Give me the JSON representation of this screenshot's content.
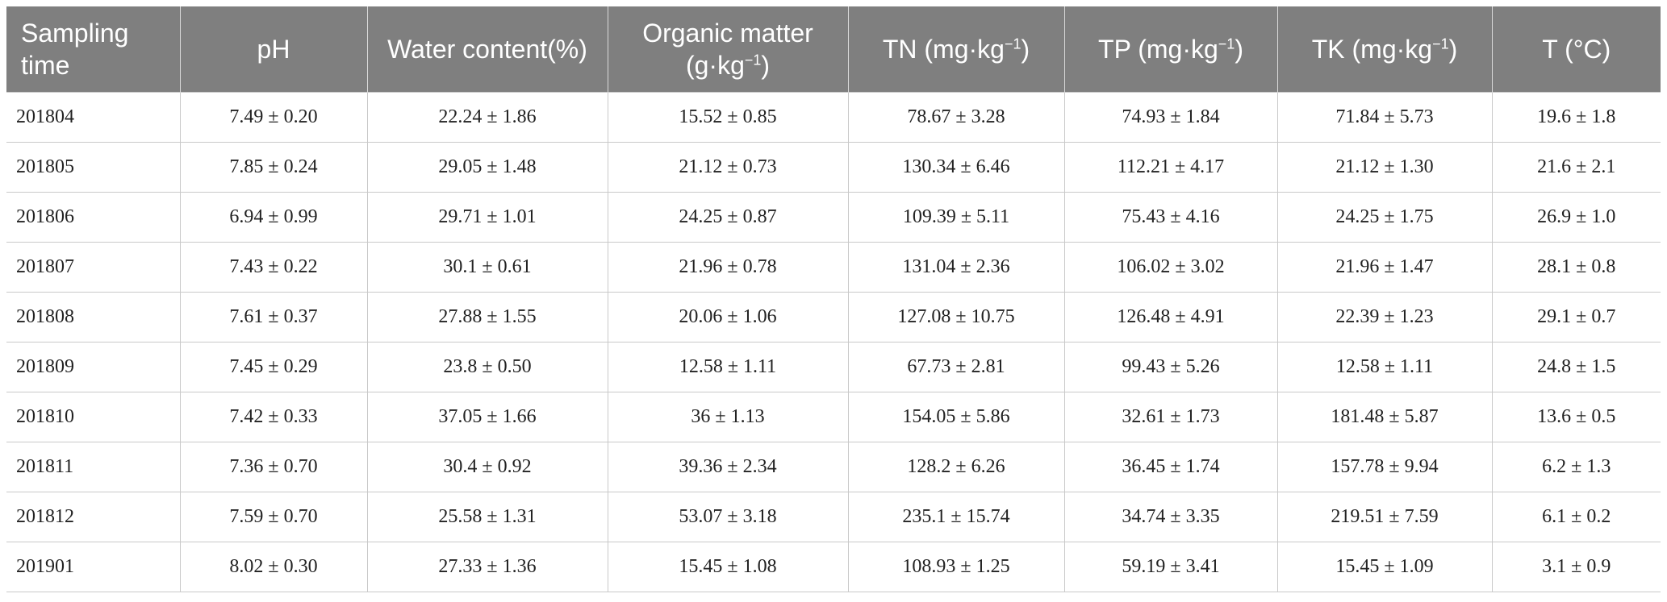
{
  "table": {
    "headers": [
      {
        "text": "Sampling time",
        "sup": "",
        "suffix": ""
      },
      {
        "text": "pH",
        "sup": "",
        "suffix": ""
      },
      {
        "text": "Water content(%)",
        "sup": "",
        "suffix": ""
      },
      {
        "text": "Organic matter (g·kg",
        "sup": "−1",
        "suffix": ")"
      },
      {
        "text": "TN (mg·kg",
        "sup": "−1",
        "suffix": ")"
      },
      {
        "text": "TP (mg·kg",
        "sup": "−1",
        "suffix": ")"
      },
      {
        "text": "TK (mg·kg",
        "sup": "−1",
        "suffix": ")"
      },
      {
        "text": "T (°C)",
        "sup": "",
        "suffix": ""
      }
    ],
    "rows": [
      [
        "201804",
        "7.49 ± 0.20",
        "22.24 ± 1.86",
        "15.52 ± 0.85",
        "78.67 ± 3.28",
        "74.93 ± 1.84",
        "71.84 ± 5.73",
        "19.6 ± 1.8"
      ],
      [
        "201805",
        "7.85 ± 0.24",
        "29.05 ± 1.48",
        "21.12 ± 0.73",
        "130.34 ± 6.46",
        "112.21 ± 4.17",
        "21.12 ± 1.30",
        "21.6 ± 2.1"
      ],
      [
        "201806",
        "6.94 ± 0.99",
        "29.71 ± 1.01",
        "24.25 ± 0.87",
        "109.39 ± 5.11",
        "75.43 ± 4.16",
        "24.25 ± 1.75",
        "26.9 ± 1.0"
      ],
      [
        "201807",
        "7.43 ± 0.22",
        "30.1 ± 0.61",
        "21.96 ± 0.78",
        "131.04 ± 2.36",
        "106.02 ± 3.02",
        "21.96 ± 1.47",
        "28.1 ± 0.8"
      ],
      [
        "201808",
        "7.61 ± 0.37",
        "27.88 ± 1.55",
        "20.06 ± 1.06",
        "127.08 ± 10.75",
        "126.48 ± 4.91",
        "22.39 ± 1.23",
        "29.1 ± 0.7"
      ],
      [
        "201809",
        "7.45 ± 0.29",
        "23.8 ± 0.50",
        "12.58 ± 1.11",
        "67.73 ± 2.81",
        "99.43 ± 5.26",
        "12.58 ± 1.11",
        "24.8 ± 1.5"
      ],
      [
        "201810",
        "7.42 ± 0.33",
        "37.05 ± 1.66",
        "36 ± 1.13",
        "154.05 ± 5.86",
        "32.61 ± 1.73",
        "181.48 ± 5.87",
        "13.6 ± 0.5"
      ],
      [
        "201811",
        "7.36 ± 0.70",
        "30.4 ± 0.92",
        "39.36 ± 2.34",
        "128.2 ± 6.26",
        "36.45 ± 1.74",
        "157.78 ± 9.94",
        "6.2 ± 1.3"
      ],
      [
        "201812",
        "7.59 ± 0.70",
        "25.58 ± 1.31",
        "53.07 ± 3.18",
        "235.1 ± 15.74",
        "34.74 ± 3.35",
        "219.51 ± 7.59",
        "6.1 ± 0.2"
      ],
      [
        "201901",
        "8.02 ± 0.30",
        "27.33 ± 1.36",
        "15.45 ± 1.08",
        "108.93 ± 1.25",
        "59.19 ± 3.41",
        "15.45 ± 1.09",
        "3.1 ± 0.9"
      ]
    ]
  }
}
